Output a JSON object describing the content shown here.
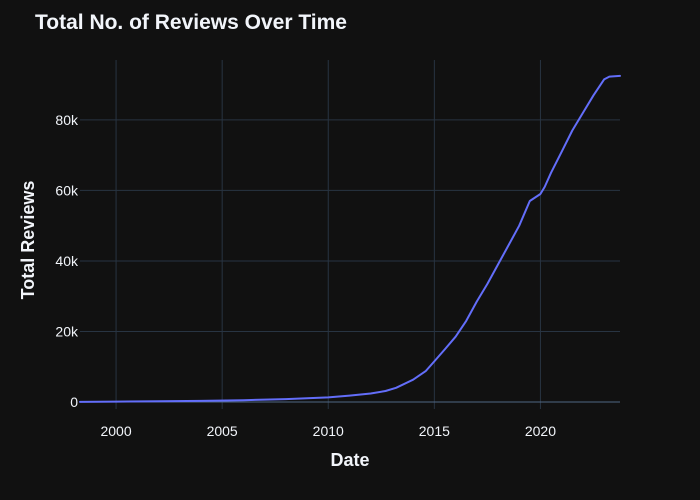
{
  "chart_data": {
    "type": "line",
    "title": "Total No. of Reviews Over Time",
    "xlabel": "Date",
    "ylabel": "Total Reviews",
    "xlim": [
      1998.3,
      2023.75
    ],
    "ylim": [
      -2000,
      97000
    ],
    "x_ticks": [
      {
        "value": 2000,
        "label": "2000"
      },
      {
        "value": 2005,
        "label": "2005"
      },
      {
        "value": 2010,
        "label": "2010"
      },
      {
        "value": 2015,
        "label": "2015"
      },
      {
        "value": 2020,
        "label": "2020"
      }
    ],
    "y_ticks": [
      {
        "value": 0,
        "label": "0"
      },
      {
        "value": 20000,
        "label": "20k"
      },
      {
        "value": 40000,
        "label": "40k"
      },
      {
        "value": 60000,
        "label": "60k"
      },
      {
        "value": 80000,
        "label": "80k"
      }
    ],
    "grid": true,
    "series": [
      {
        "color": "#636efa",
        "x": [
          1998.3,
          2000,
          2002,
          2004,
          2006,
          2008,
          2010,
          2011,
          2012,
          2012.7,
          2013.2,
          2014,
          2014.6,
          2015,
          2015.5,
          2016,
          2016.5,
          2017,
          2017.5,
          2018,
          2018.5,
          2019,
          2019.5,
          2020,
          2020.2,
          2020.5,
          2021,
          2021.5,
          2022,
          2022.5,
          2023,
          2023.25,
          2023.75
        ],
        "y": [
          0,
          100,
          200,
          300,
          500,
          800,
          1300,
          1800,
          2400,
          3100,
          4000,
          6300,
          8800,
          11500,
          15000,
          18500,
          23000,
          28500,
          33500,
          39000,
          44500,
          50000,
          57000,
          59000,
          61000,
          65000,
          71000,
          77000,
          82000,
          87000,
          91500,
          92300,
          92500
        ]
      }
    ]
  }
}
